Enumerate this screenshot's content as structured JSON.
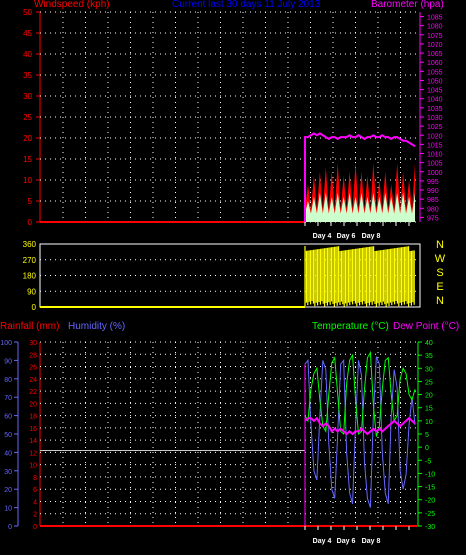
{
  "header": {
    "left": "Windspeed (kph)",
    "center": "Current last 30 days 11 July 2013",
    "right": "Barometer (hpa)"
  },
  "panel3_labels": {
    "rainfall": "Rainfall (mm)",
    "humidity": "Humidity (%)",
    "temperature": "Temperature (°C)",
    "dewpoint": "Dew Point (°C)"
  },
  "colors": {
    "wind_axis": "#ff0000",
    "baro_axis": "#ff00ff",
    "title": "#0000ff",
    "humidity_axis": "#6666ff",
    "temp_axis": "#00ff00",
    "dir_axis": "#ffff00",
    "grid": "#ffffff"
  },
  "chart_data": [
    {
      "type": "line",
      "panel": "wind-baro",
      "x_ticks": [
        "Day 4",
        "Day 6",
        "Day 8"
      ],
      "left_axis": {
        "label": "Windspeed (kph)",
        "ylim": [
          0,
          50
        ],
        "ticks": [
          0,
          5,
          10,
          15,
          20,
          25,
          30,
          35,
          40,
          45,
          50
        ]
      },
      "right_axis": {
        "label": "Barometer (hpa)",
        "ylim": [
          972.5,
          1087.5
        ],
        "ticks": [
          975,
          980,
          985,
          990,
          995,
          1000,
          1005,
          1010,
          1015,
          1020,
          1025,
          1030,
          1035,
          1040,
          1045,
          1050,
          1055,
          1060,
          1065,
          1070,
          1075,
          1080,
          1085
        ]
      },
      "series": [
        {
          "name": "Barometer",
          "axis": "right",
          "color": "#ff00ff",
          "values": [
            1019,
            1019,
            1020,
            1021,
            1020,
            1021,
            1020,
            1019,
            1018,
            1019,
            1019,
            1018,
            1019,
            1019,
            1019,
            1020,
            1019,
            1019,
            1020,
            1019,
            1018,
            1019,
            1019,
            1020,
            1019,
            1019,
            1020,
            1019,
            1019,
            1018,
            1019,
            1019,
            1018,
            1017,
            1017,
            1016,
            1015,
            1014
          ]
        },
        {
          "name": "Gust",
          "axis": "left",
          "color": "#ff0000",
          "values": [
            3,
            9,
            3,
            11,
            3,
            12,
            3,
            13,
            3,
            12,
            3,
            14,
            3,
            11,
            3,
            12,
            3,
            14,
            3,
            12,
            3,
            11,
            3,
            14,
            3,
            10,
            3,
            12,
            3,
            9,
            3,
            14,
            3,
            12,
            3,
            10,
            3,
            14
          ]
        },
        {
          "name": "Average",
          "axis": "left",
          "color": "#ccffcc",
          "values": [
            2,
            5,
            2,
            6,
            2,
            7,
            2,
            7,
            2,
            6,
            2,
            7,
            2,
            6,
            2,
            7,
            2,
            6,
            2,
            7,
            2,
            6,
            2,
            7,
            2,
            6,
            2,
            7,
            2,
            6,
            2,
            7,
            2,
            7,
            2,
            6,
            2,
            7
          ]
        }
      ]
    },
    {
      "type": "scatter",
      "panel": "wind-direction",
      "left_axis": {
        "ylim": [
          0,
          360
        ],
        "ticks": [
          0,
          90,
          180,
          270,
          360
        ]
      },
      "right_axis_compass": [
        "N",
        "W",
        "S",
        "E",
        "N"
      ],
      "series": [
        {
          "name": "Direction",
          "color": "#ffff00",
          "coverage": "0-360 continuous from start of data"
        }
      ]
    },
    {
      "type": "line",
      "panel": "rain-humidity-temp",
      "x_ticks": [
        "Day 4",
        "Day 6",
        "Day 8"
      ],
      "rain_axis": {
        "label": "Rainfall (mm)",
        "ylim": [
          0,
          30
        ],
        "ticks": [
          0,
          2,
          4,
          6,
          8,
          10,
          12,
          14,
          16,
          18,
          20,
          22,
          24,
          26,
          28,
          30
        ]
      },
      "humidity_axis": {
        "label": "Humidity (%)",
        "ylim": [
          0,
          100
        ],
        "ticks": [
          0,
          10,
          20,
          30,
          40,
          50,
          60,
          70,
          80,
          90,
          100
        ]
      },
      "temp_axis": {
        "label": "Temperature (°C)",
        "ylim": [
          -30,
          40
        ],
        "ticks": [
          -30,
          -25,
          -20,
          -15,
          -10,
          -5,
          0,
          5,
          10,
          15,
          20,
          25,
          30,
          35,
          40
        ]
      },
      "series": [
        {
          "name": "Rainfall",
          "color": "#ff0000",
          "values": [
            0,
            0,
            0,
            0,
            0,
            0,
            0,
            0,
            0,
            0,
            0,
            0,
            0,
            0,
            0,
            0,
            0,
            0,
            0,
            0,
            0,
            0,
            0,
            0,
            0,
            0,
            0,
            0,
            0,
            0,
            0,
            0,
            0,
            0,
            0,
            0,
            0,
            0
          ]
        },
        {
          "name": "Humidity",
          "color": "#6666ff",
          "values": [
            88,
            90,
            55,
            30,
            25,
            60,
            90,
            85,
            45,
            20,
            15,
            50,
            88,
            90,
            40,
            18,
            12,
            55,
            90,
            82,
            35,
            15,
            10,
            60,
            92,
            88,
            40,
            18,
            12,
            60,
            85,
            75,
            30,
            20,
            28,
            55,
            70,
            55
          ]
        },
        {
          "name": "Temperature",
          "color": "#00ff00",
          "values": [
            12,
            10,
            22,
            28,
            30,
            18,
            8,
            6,
            20,
            32,
            34,
            20,
            6,
            5,
            24,
            33,
            35,
            18,
            5,
            6,
            22,
            34,
            36,
            16,
            4,
            8,
            22,
            33,
            34,
            20,
            10,
            12,
            26,
            30,
            28,
            20,
            18,
            22
          ]
        },
        {
          "name": "Dew Point",
          "color": "#ff00ff",
          "values": [
            10,
            11,
            11,
            10,
            11,
            9,
            8,
            9,
            8,
            6,
            7,
            6,
            7,
            6,
            5,
            6,
            5,
            6,
            6,
            7,
            6,
            5,
            6,
            7,
            6,
            7,
            6,
            7,
            8,
            9,
            10,
            9,
            8,
            9,
            10,
            11,
            10,
            9
          ]
        }
      ]
    }
  ]
}
